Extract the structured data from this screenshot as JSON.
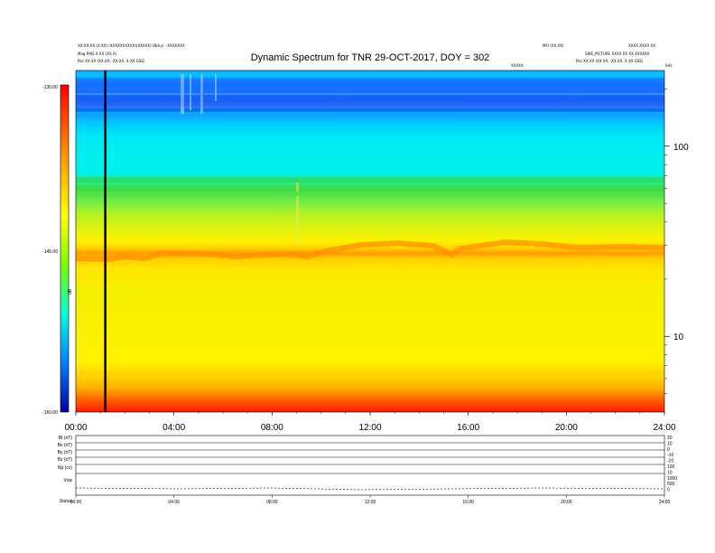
{
  "header": {
    "top_left_1": "XX:XX:XX (X:XX) (XXXXXXXXXX)(XXXXX) (Bdry) - XXXXXXX",
    "top_left_2": "Mag RMS X.XX (XX.X)",
    "top_left_3": "Pos    XX.XX (XX.XX, -XX.XX, X.XX GSE)",
    "top_right_1": "MFI (XX.XX)",
    "top_right_2": "XXXX XXXX XX",
    "top_right_3": "SWE_PICTURE XXXX XX XX XXXXXX",
    "top_right_4": "Pos    XX.XX (XX.XX, -XX.XX, X.XX GSE)",
    "mid_right": "XXXXX",
    "corner_unit": "kHz",
    "title": "Dynamic Spectrum for TNR 29-OCT-2017, DOY = 302"
  },
  "colorbar": {
    "labels": [
      "-130.00",
      "-145.00",
      "-160.00"
    ],
    "unit": "dB"
  },
  "chart_data": {
    "type": "heatmap",
    "title": "Dynamic Spectrum for TNR 29-OCT-2017, DOY = 302",
    "x_tick_labels": [
      "00:00",
      "04:00",
      "08:00",
      "12:00",
      "16:00",
      "20:00",
      "24:00"
    ],
    "x_range_hours": [
      0,
      24
    ],
    "y_scale": "log",
    "y_range": [
      4,
      250
    ],
    "y_tick_labels": [
      "100",
      "10"
    ],
    "y_unit": "kHz",
    "colorbar_range": [
      -160,
      -130
    ],
    "colorbar_unit": "dB",
    "marker_line_hour": 1.2,
    "grid": false
  },
  "lower_panel": {
    "row_labels": [
      "Bt (nT)",
      "Bx (nT)",
      "By (nT)",
      "Bz (nT)",
      "Np (cc)",
      "Vsw",
      "Status"
    ],
    "right_labels": [
      "20",
      "10",
      "0",
      "-10",
      "-20",
      "100",
      "10",
      "1000",
      "500",
      "0"
    ]
  }
}
